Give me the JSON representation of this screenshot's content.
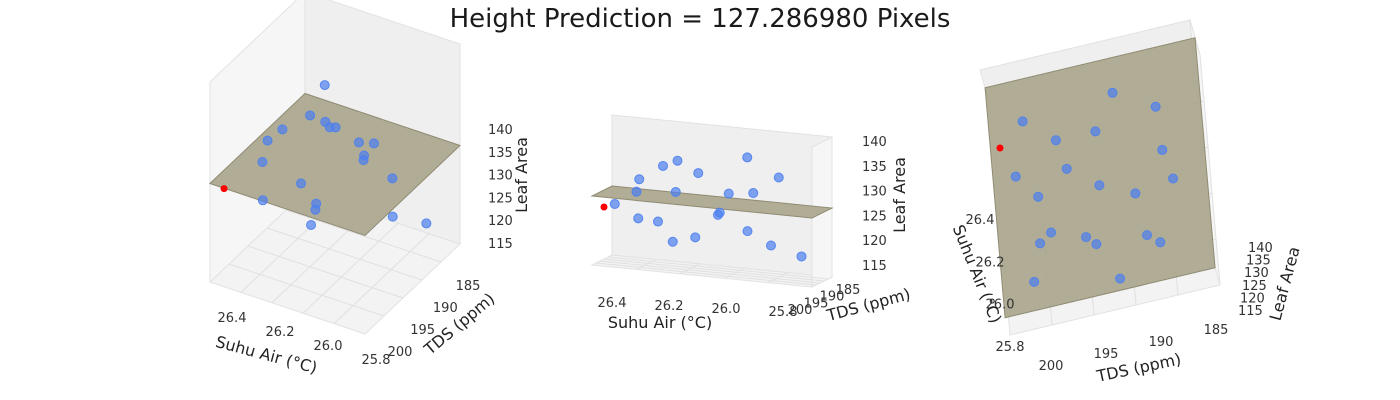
{
  "title": "Height Prediction = 127.286980 Pixels",
  "chart_data": [
    {
      "type": "scatter",
      "view": "left",
      "xlabel": "Suhu Air (°C)",
      "ylabel": "TDS (ppm)",
      "zlabel": "Leaf Area",
      "x_ticks": [
        "26.4",
        "26.2",
        "26.0",
        "25.8"
      ],
      "y_ticks": [
        "185",
        "190",
        "195",
        "200"
      ],
      "z_ticks": [
        "140",
        "135",
        "130",
        "125",
        "120",
        "115"
      ],
      "xlim": [
        25.75,
        26.55
      ],
      "ylim": [
        182,
        202
      ],
      "zlim": [
        113,
        142
      ],
      "series": [
        {
          "values": [
            {
              "x": 26.3,
              "y": 186,
              "z": 138
            },
            {
              "x": 26.1,
              "y": 192,
              "z": 133
            },
            {
              "x": 25.9,
              "y": 188,
              "z": 131
            },
            {
              "x": 26.2,
              "y": 195,
              "z": 129
            },
            {
              "x": 26.0,
              "y": 197,
              "z": 128
            },
            {
              "x": 25.85,
              "y": 199,
              "z": 127
            },
            {
              "x": 26.4,
              "y": 190,
              "z": 134
            },
            {
              "x": 26.05,
              "y": 185,
              "z": 136
            },
            {
              "x": 26.15,
              "y": 198,
              "z": 124
            },
            {
              "x": 25.95,
              "y": 193,
              "z": 122
            },
            {
              "x": 26.25,
              "y": 200,
              "z": 121
            },
            {
              "x": 26.35,
              "y": 196,
              "z": 119
            },
            {
              "x": 25.9,
              "y": 187,
              "z": 123
            },
            {
              "x": 26.1,
              "y": 189,
              "z": 120
            },
            {
              "x": 26.0,
              "y": 194,
              "z": 118
            },
            {
              "x": 25.8,
              "y": 191,
              "z": 125
            },
            {
              "x": 26.2,
              "y": 186,
              "z": 126
            },
            {
              "x": 26.45,
              "y": 199,
              "z": 117
            },
            {
              "x": 26.3,
              "y": 192,
              "z": 130
            },
            {
              "x": 25.95,
              "y": 198,
              "z": 133
            }
          ]
        },
        {
          "values": [
            {
              "x": 26.5,
              "y": 201,
              "z": 127.287
            }
          ]
        }
      ],
      "colors": {
        "points": "#4d7ff0",
        "prediction": "#ff0000",
        "plane": "#a8a48c"
      },
      "plane_z": 127.287
    },
    {
      "type": "scatter",
      "view": "middle",
      "xlabel": "Suhu Air (°C)",
      "ylabel": "TDS (ppm)",
      "zlabel": "Leaf Area",
      "x_ticks": [
        "26.4",
        "26.2",
        "26.0",
        "25.8"
      ],
      "y_ticks": [
        "185",
        "190",
        "195",
        "200"
      ],
      "z_ticks": [
        "140",
        "135",
        "130",
        "125",
        "120",
        "115"
      ]
    },
    {
      "type": "scatter",
      "view": "right",
      "xlabel": "Suhu Air (°C)",
      "ylabel": "TDS (ppm)",
      "zlabel": "Leaf Area",
      "x_ticks": [
        "26.4",
        "26.2",
        "26.0",
        "25.8"
      ],
      "y_ticks": [
        "200",
        "195",
        "190",
        "185"
      ],
      "z_ticks": [
        "140",
        "135",
        "130",
        "125",
        "120",
        "115"
      ]
    }
  ]
}
